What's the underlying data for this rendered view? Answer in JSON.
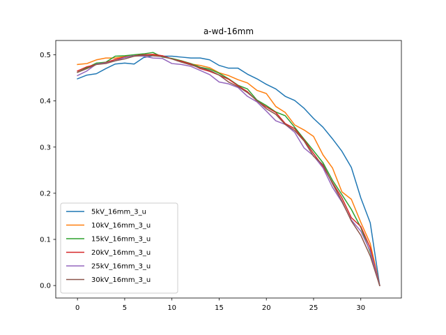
{
  "chart_data": {
    "type": "line",
    "title": "a-wd-16mm",
    "xlabel": "",
    "ylabel": "",
    "xlim": [
      -2.3,
      34.3
    ],
    "ylim": [
      -0.027,
      0.531
    ],
    "xticks": [
      0,
      5,
      10,
      15,
      20,
      25,
      30
    ],
    "xtick_labels": [
      "0",
      "5",
      "10",
      "15",
      "20",
      "25",
      "30"
    ],
    "yticks": [
      0.0,
      0.1,
      0.2,
      0.3,
      0.4,
      0.5
    ],
    "ytick_labels": [
      "0.0",
      "0.1",
      "0.2",
      "0.3",
      "0.4",
      "0.5"
    ],
    "grid": false,
    "legend_position": "lower-left",
    "x": [
      0,
      1,
      2,
      3,
      4,
      5,
      6,
      7,
      8,
      9,
      10,
      11,
      12,
      13,
      14,
      15,
      16,
      17,
      18,
      19,
      20,
      21,
      22,
      23,
      24,
      25,
      26,
      27,
      28,
      29,
      30,
      31,
      32
    ],
    "series": [
      {
        "name": "5kV_16mm_3_u",
        "color": "#1f77b4",
        "values": [
          0.448,
          0.456,
          0.459,
          0.47,
          0.48,
          0.482,
          0.48,
          0.494,
          0.498,
          0.497,
          0.497,
          0.495,
          0.493,
          0.493,
          0.489,
          0.477,
          0.471,
          0.471,
          0.458,
          0.448,
          0.436,
          0.426,
          0.41,
          0.401,
          0.384,
          0.362,
          0.343,
          0.318,
          0.291,
          0.256,
          0.19,
          0.136,
          0.0
        ]
      },
      {
        "name": "10kV_16mm_3_u",
        "color": "#ff7f0e",
        "values": [
          0.479,
          0.481,
          0.489,
          0.493,
          0.493,
          0.496,
          0.497,
          0.498,
          0.499,
          0.497,
          0.491,
          0.487,
          0.48,
          0.477,
          0.472,
          0.461,
          0.455,
          0.446,
          0.439,
          0.423,
          0.416,
          0.388,
          0.375,
          0.348,
          0.337,
          0.323,
          0.283,
          0.255,
          0.203,
          0.187,
          0.137,
          0.091,
          0.0
        ]
      },
      {
        "name": "15kV_16mm_3_u",
        "color": "#2ca02c",
        "values": [
          0.462,
          0.472,
          0.482,
          0.484,
          0.497,
          0.498,
          0.5,
          0.502,
          0.505,
          0.495,
          0.492,
          0.487,
          0.481,
          0.473,
          0.469,
          0.46,
          0.448,
          0.434,
          0.426,
          0.402,
          0.39,
          0.376,
          0.368,
          0.343,
          0.317,
          0.292,
          0.266,
          0.228,
          0.197,
          0.165,
          0.126,
          0.072,
          0.0
        ]
      },
      {
        "name": "20kV_16mm_3_u",
        "color": "#d62728",
        "values": [
          0.465,
          0.474,
          0.479,
          0.483,
          0.49,
          0.495,
          0.498,
          0.5,
          0.501,
          0.498,
          0.491,
          0.486,
          0.48,
          0.47,
          0.464,
          0.456,
          0.447,
          0.433,
          0.42,
          0.4,
          0.387,
          0.375,
          0.351,
          0.34,
          0.315,
          0.286,
          0.258,
          0.223,
          0.19,
          0.147,
          0.128,
          0.082,
          0.0
        ]
      },
      {
        "name": "25kV_16mm_3_u",
        "color": "#9467bd",
        "values": [
          0.455,
          0.465,
          0.48,
          0.482,
          0.487,
          0.494,
          0.498,
          0.497,
          0.493,
          0.492,
          0.481,
          0.479,
          0.475,
          0.466,
          0.457,
          0.441,
          0.437,
          0.429,
          0.41,
          0.398,
          0.378,
          0.357,
          0.349,
          0.332,
          0.298,
          0.281,
          0.255,
          0.213,
          0.181,
          0.142,
          0.118,
          0.075,
          0.0
        ]
      },
      {
        "name": "30kV_16mm_3_u",
        "color": "#8c564b",
        "values": [
          0.462,
          0.47,
          0.479,
          0.481,
          0.487,
          0.491,
          0.497,
          0.499,
          0.498,
          0.496,
          0.491,
          0.484,
          0.478,
          0.472,
          0.466,
          0.456,
          0.441,
          0.431,
          0.418,
          0.401,
          0.383,
          0.371,
          0.349,
          0.336,
          0.313,
          0.28,
          0.262,
          0.221,
          0.183,
          0.14,
          0.109,
          0.064,
          0.0
        ]
      }
    ]
  }
}
